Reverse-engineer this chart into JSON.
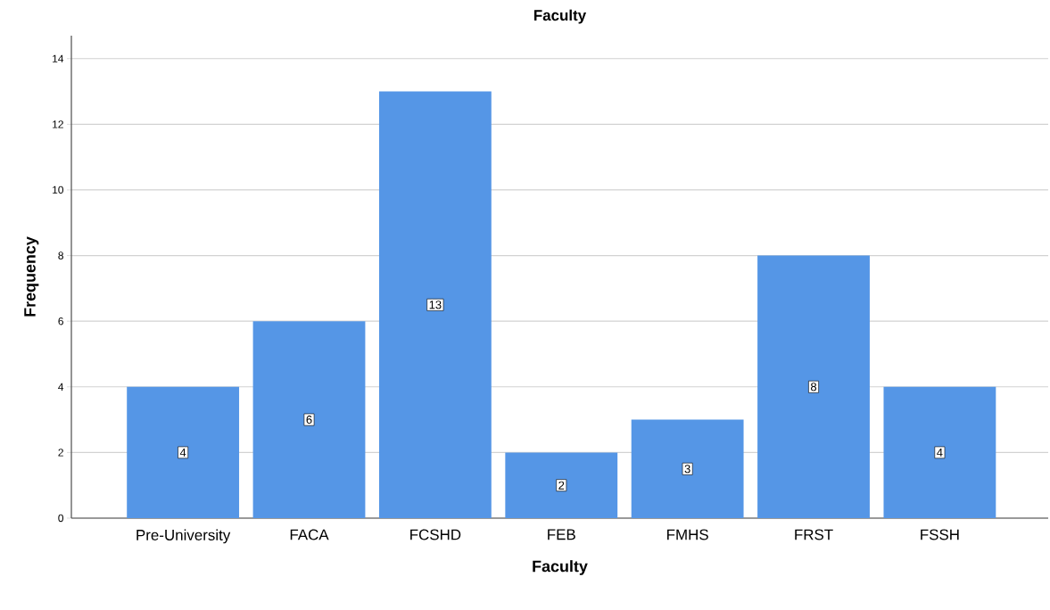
{
  "chart_data": {
    "type": "bar",
    "title": "Faculty",
    "xlabel": "Faculty",
    "ylabel": "Frequency",
    "categories": [
      "Pre-University",
      "FACA",
      "FCSHD",
      "FEB",
      "FMHS",
      "FRST",
      "FSSH"
    ],
    "values": [
      4,
      6,
      13,
      2,
      3,
      8,
      4
    ],
    "color": "#5596e6",
    "ylim": [
      0,
      14.7
    ],
    "yticks": [
      0,
      2,
      4,
      6,
      8,
      10,
      12,
      14
    ],
    "grid": "y",
    "data_labels": true
  }
}
